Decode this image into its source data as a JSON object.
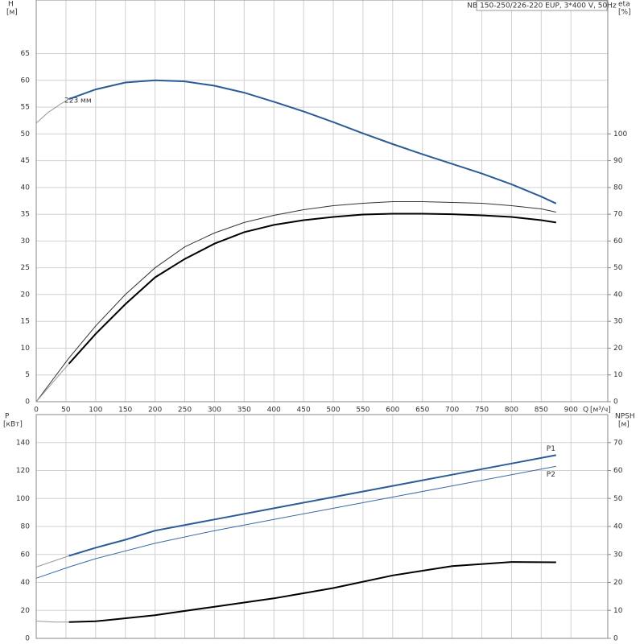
{
  "chart_data": [
    {
      "type": "line",
      "title": "NB 150-250/226-220 EUP, 3*400 V, 50Hz",
      "y_label": "H",
      "y_unit": "[м]",
      "y2_label": "eta",
      "y2_unit": "[%]",
      "x_label": "Q",
      "x_unit": "[м³/ч]",
      "annotation": "223 мм",
      "xlim": [
        0,
        962
      ],
      "xticks": [
        0,
        50,
        100,
        150,
        200,
        250,
        300,
        350,
        400,
        450,
        500,
        550,
        600,
        650,
        700,
        750,
        800,
        850,
        900
      ],
      "ylim": [
        0,
        75
      ],
      "yticks": [
        0,
        5,
        10,
        15,
        20,
        25,
        30,
        35,
        40,
        45,
        50,
        55,
        60,
        65
      ],
      "y2lim": [
        0,
        150
      ],
      "y2ticks": [
        0,
        10,
        20,
        30,
        40,
        50,
        60,
        70,
        80,
        90,
        100
      ],
      "grid": true,
      "series": [
        {
          "color": "#2b5c96",
          "x": [
            55,
            100,
            150,
            200,
            250,
            300,
            350,
            400,
            450,
            500,
            550,
            600,
            650,
            700,
            750,
            800,
            850,
            875
          ],
          "values": [
            56.5,
            58.3,
            59.6,
            60,
            59.8,
            59,
            57.7,
            56,
            54.2,
            52.2,
            50.1,
            48.1,
            46.2,
            44.4,
            42.6,
            40.6,
            38.3,
            37
          ]
        },
        {
          "color": "#999999",
          "x": [
            0,
            20,
            40,
            55
          ],
          "values": [
            52,
            54,
            55.5,
            56.5
          ]
        },
        {
          "color": "#333333",
          "axis": "y2",
          "x": [
            0,
            55,
            100,
            150,
            200,
            250,
            300,
            350,
            400,
            450,
            500,
            550,
            600,
            650,
            700,
            750,
            800,
            850,
            875
          ],
          "values": [
            0,
            16.3,
            28.3,
            40,
            50,
            57.8,
            63,
            66.9,
            69.6,
            71.7,
            73.2,
            74.1,
            74.7,
            74.7,
            74.4,
            74.1,
            73.2,
            72,
            70.8
          ]
        },
        {
          "color": "#000000",
          "axis": "y2",
          "x": [
            55,
            100,
            150,
            200,
            250,
            300,
            350,
            400,
            450,
            500,
            550,
            600,
            650,
            700,
            750,
            800,
            850,
            875
          ],
          "values": [
            14.2,
            25.3,
            36.4,
            46.4,
            53.3,
            59,
            63.3,
            66,
            67.8,
            69,
            69.9,
            70.2,
            70.2,
            70,
            69.6,
            69,
            67.8,
            66.9
          ]
        },
        {
          "color": "#999999",
          "axis": "y2",
          "x": [
            0,
            55
          ],
          "values": [
            0,
            14.2
          ]
        }
      ]
    },
    {
      "type": "line",
      "y_label": "P",
      "y_unit": "[кВт]",
      "y2_label": "NPSH",
      "y2_unit": "[м]",
      "ylim": [
        0,
        160
      ],
      "yticks": [
        0,
        20,
        40,
        60,
        80,
        100,
        120,
        140
      ],
      "y2lim": [
        0,
        80
      ],
      "y2ticks": [
        0,
        10,
        20,
        30,
        40,
        50,
        60,
        70
      ],
      "grid": true,
      "series": [
        {
          "name": "P1",
          "color": "#2b5c96",
          "x": [
            55,
            100,
            150,
            200,
            300,
            400,
            500,
            600,
            700,
            800,
            875
          ],
          "values": [
            59,
            64.8,
            70.5,
            77,
            85,
            93,
            101,
            109,
            117,
            125,
            131
          ]
        },
        {
          "color": "#999999",
          "x": [
            0,
            55
          ],
          "values": [
            51,
            59
          ]
        },
        {
          "name": "P2",
          "color": "#3a6aa6",
          "x": [
            0,
            55,
            100,
            200,
            300,
            400,
            500,
            600,
            700,
            800,
            875
          ],
          "values": [
            43,
            51,
            57,
            68,
            77,
            85,
            93,
            101,
            109,
            117,
            123
          ]
        },
        {
          "color": "#000000",
          "axis": "y2",
          "x": [
            55,
            100,
            200,
            300,
            400,
            500,
            600,
            700,
            800,
            875
          ],
          "values": [
            5.8,
            6.1,
            8.3,
            11.3,
            14.3,
            18,
            22.5,
            25.8,
            27.3,
            27.2
          ]
        },
        {
          "color": "#999999",
          "axis": "y2",
          "x": [
            0,
            30,
            55
          ],
          "values": [
            6.2,
            5.8,
            5.8
          ]
        }
      ]
    }
  ]
}
